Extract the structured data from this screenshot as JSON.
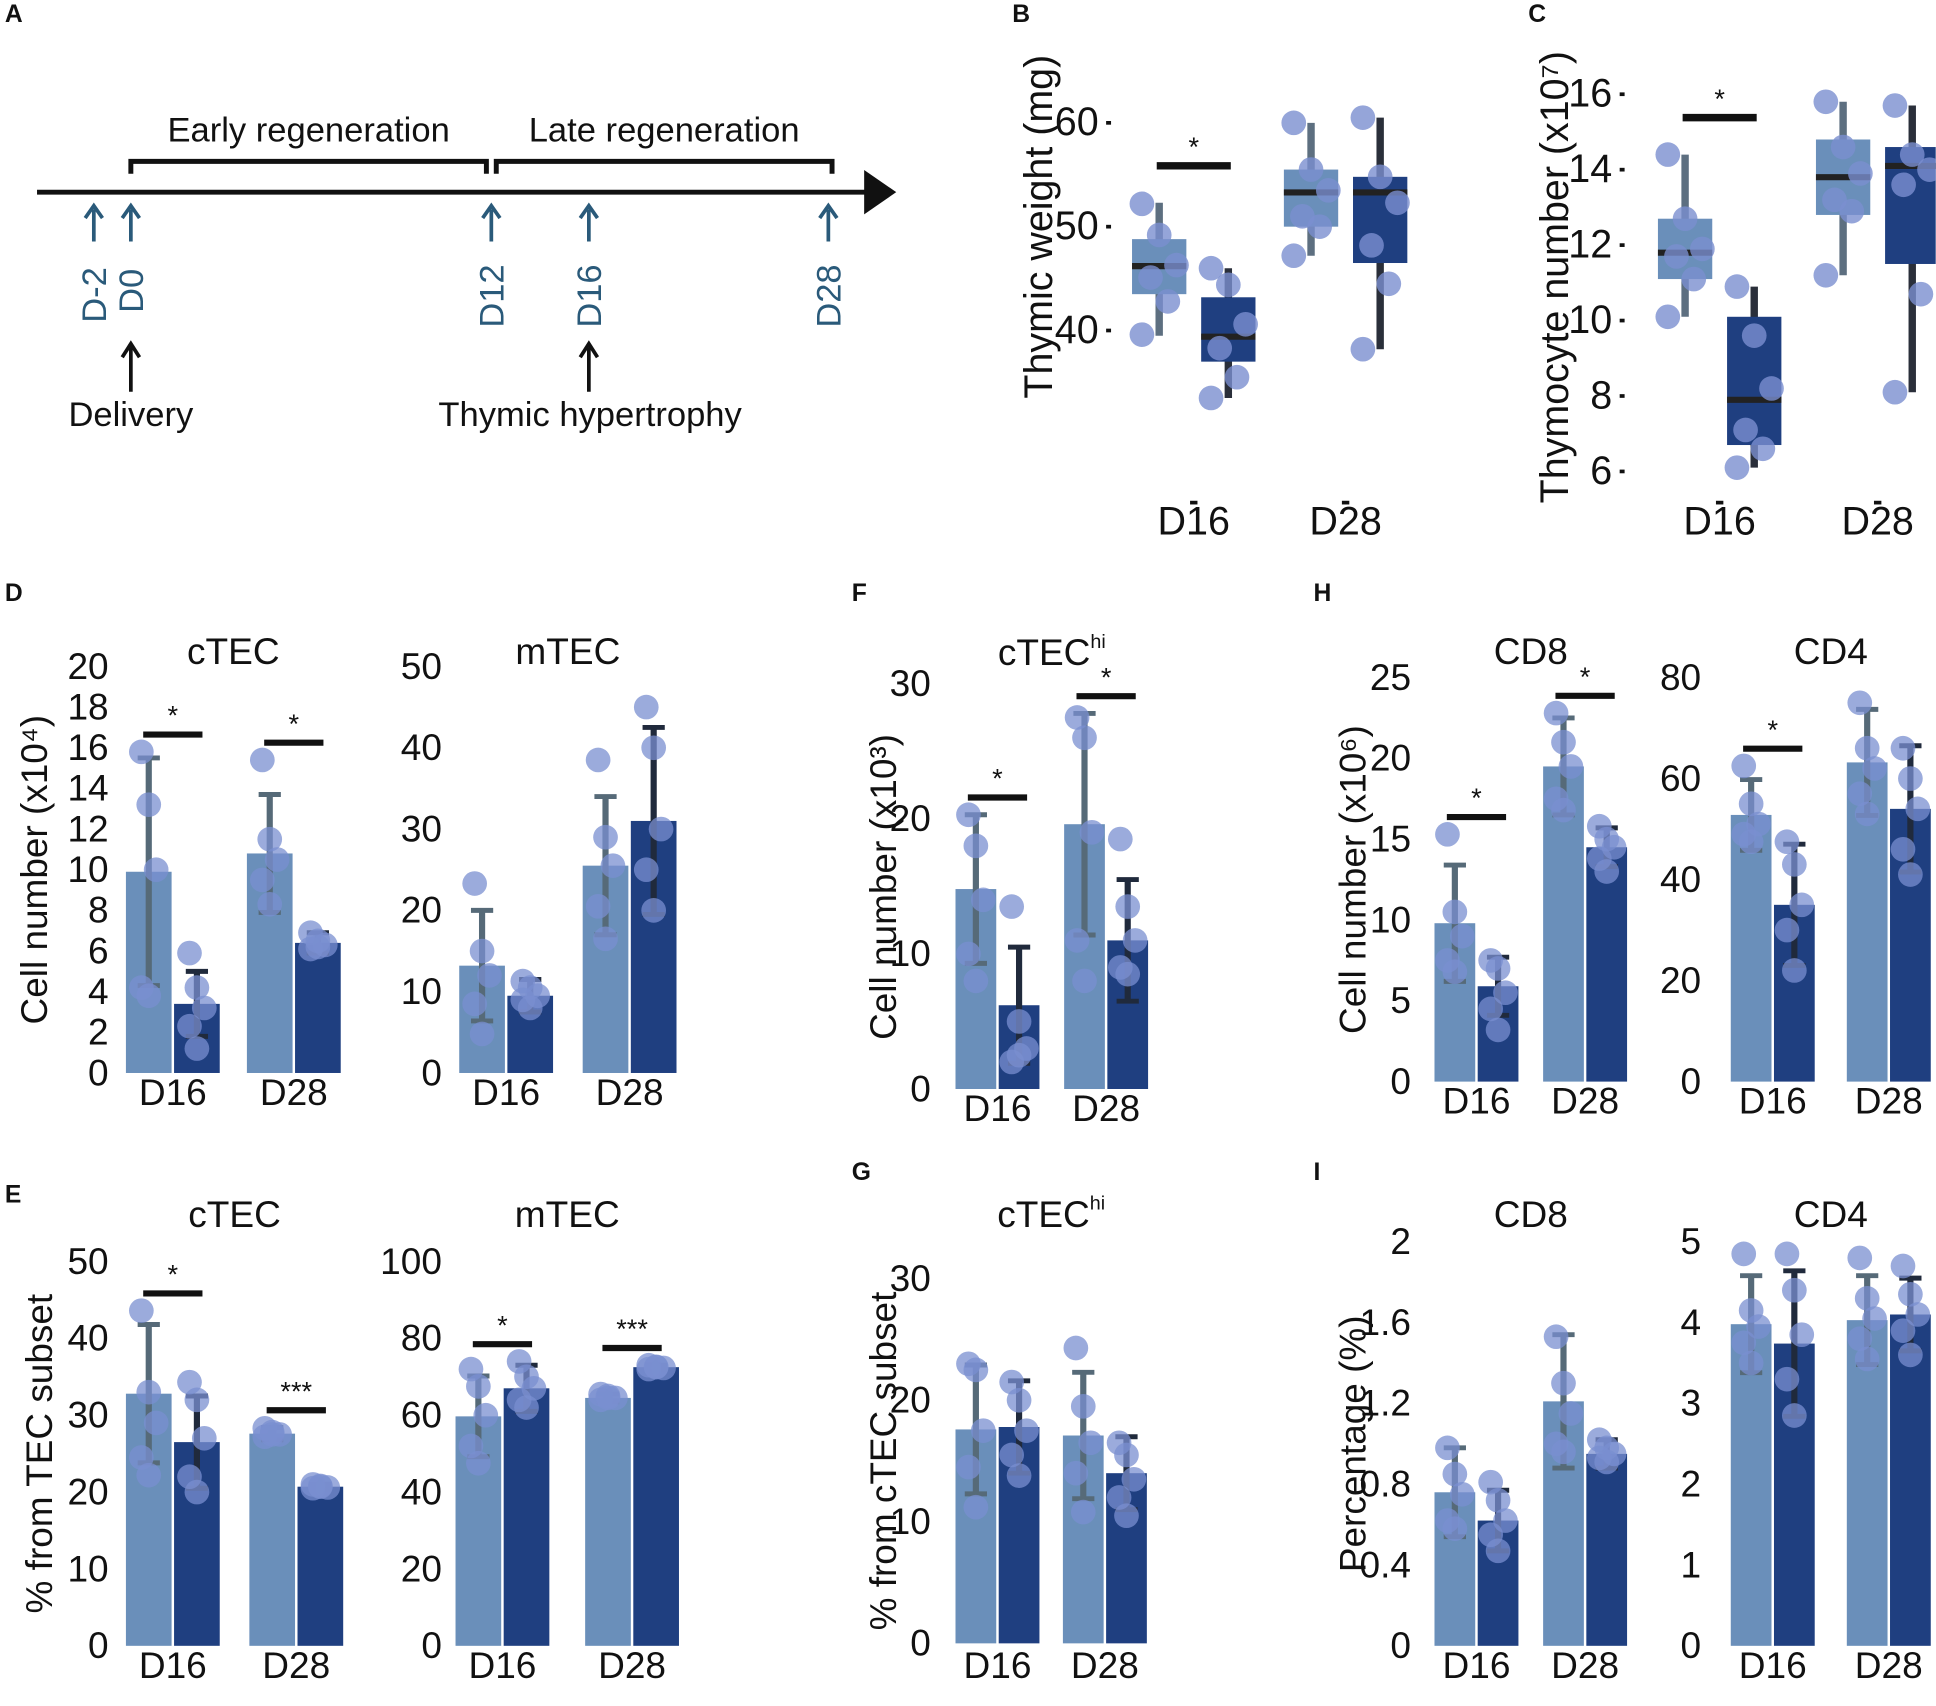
{
  "figure": {
    "panels": {
      "A": {
        "label": "A"
      },
      "B": {
        "label": "B"
      },
      "C": {
        "label": "C"
      },
      "D": {
        "label": "D"
      },
      "E": {
        "label": "E"
      },
      "F": {
        "label": "F"
      },
      "G": {
        "label": "G"
      },
      "H": {
        "label": "H"
      },
      "I": {
        "label": "I"
      }
    },
    "timeline": {
      "phases": [
        "Early regeneration",
        "Late regeneration"
      ],
      "timepoints": [
        "D-2",
        "D0",
        "D12",
        "D16",
        "D28"
      ],
      "events": [
        "Delivery",
        "Thymic hypertrophy"
      ]
    }
  },
  "colors": {
    "group1": "#6a8fba",
    "group2": "#1f3f80",
    "dots": "#7a8fd0",
    "timeline_text": "#2a5a7a",
    "axis": "#111111"
  },
  "chart_data": [
    {
      "id": "B",
      "type": "box",
      "ylabel": "Thymic weight (mg)",
      "categories": [
        "D16",
        "D28"
      ],
      "yticks": [
        40,
        50,
        60
      ],
      "ylim": [
        36,
        64
      ],
      "boxes": [
        {
          "category": "D16",
          "group": 1,
          "q1": 43.5,
          "median": 46.2,
          "q3": 48.8,
          "whisker_low": 39.5,
          "whisker_high": 52.3,
          "points": [
            52.2,
            49.2,
            46.3,
            45.1,
            42.8,
            39.6
          ]
        },
        {
          "category": "D16",
          "group": 2,
          "q1": 37.0,
          "median": 39.4,
          "q3": 43.2,
          "whisker_low": 33.5,
          "whisker_high": 46.0,
          "points": [
            46.0,
            44.4,
            40.6,
            38.3,
            35.5,
            33.5
          ]
        },
        {
          "category": "D28",
          "group": 1,
          "q1": 50.0,
          "median": 53.3,
          "q3": 55.5,
          "whisker_low": 47.2,
          "whisker_high": 60.0,
          "points": [
            60.0,
            55.5,
            53.5,
            51.0,
            50.0,
            47.2
          ]
        },
        {
          "category": "D28",
          "group": 2,
          "q1": 46.5,
          "median": 53.3,
          "q3": 54.8,
          "whisker_low": 38.2,
          "whisker_high": 60.5,
          "points": [
            60.5,
            54.8,
            52.3,
            48.2,
            44.5,
            38.2
          ]
        }
      ],
      "significance": [
        {
          "category": "D16",
          "label": "*"
        }
      ]
    },
    {
      "id": "C",
      "type": "box",
      "ylabel": "Thymocyte number (x10⁷)",
      "categories": [
        "D16",
        "D28"
      ],
      "yticks": [
        6,
        8,
        10,
        12,
        14,
        16
      ],
      "ylim": [
        5.5,
        16.8
      ],
      "boxes": [
        {
          "category": "D16",
          "group": 1,
          "q1": 11.1,
          "median": 11.8,
          "q3": 12.7,
          "whisker_low": 10.1,
          "whisker_high": 14.4,
          "points": [
            14.4,
            12.7,
            11.9,
            11.7,
            11.1,
            10.1
          ]
        },
        {
          "category": "D16",
          "group": 2,
          "q1": 6.7,
          "median": 7.9,
          "q3": 10.1,
          "whisker_low": 6.1,
          "whisker_high": 10.9,
          "points": [
            10.9,
            9.6,
            8.2,
            7.1,
            6.6,
            6.1
          ]
        },
        {
          "category": "D28",
          "group": 1,
          "q1": 12.8,
          "median": 13.8,
          "q3": 14.8,
          "whisker_low": 11.2,
          "whisker_high": 15.8,
          "points": [
            15.8,
            14.6,
            13.9,
            13.2,
            12.9,
            11.2
          ]
        },
        {
          "category": "D28",
          "group": 2,
          "q1": 11.5,
          "median": 14.1,
          "q3": 14.6,
          "whisker_low": 8.1,
          "whisker_high": 15.7,
          "points": [
            15.7,
            14.4,
            14.0,
            13.6,
            10.7,
            8.1
          ]
        }
      ],
      "significance": [
        {
          "category": "D16",
          "label": "*"
        }
      ]
    },
    {
      "id": "D-cTEC",
      "type": "bar",
      "title": "cTEC",
      "ylabel": "Cell number (x10⁴)",
      "categories": [
        "D16",
        "D28"
      ],
      "yticks": [
        0,
        2,
        4,
        6,
        8,
        10,
        12,
        14,
        16,
        18,
        20
      ],
      "ylim": [
        0,
        20
      ],
      "series": [
        {
          "name": "group1",
          "values": [
            9.9,
            10.8
          ],
          "err": [
            5.6,
            2.9
          ],
          "points": [
            [
              15.8,
              13.2,
              10.0,
              4.2,
              3.8
            ],
            [
              15.4,
              11.5,
              10.5,
              9.5,
              8.3
            ]
          ]
        },
        {
          "name": "group2",
          "values": [
            3.4,
            6.4
          ],
          "err": [
            1.6,
            0.5
          ],
          "points": [
            [
              5.9,
              4.2,
              3.2,
              2.3,
              1.2
            ],
            [
              6.9,
              6.5,
              6.3,
              6.1,
              6.2
            ]
          ]
        }
      ],
      "significance": [
        {
          "category": "D16",
          "label": "*"
        },
        {
          "category": "D28",
          "label": "*"
        }
      ]
    },
    {
      "id": "D-mTEC",
      "type": "bar",
      "title": "mTEC",
      "categories": [
        "D16",
        "D28"
      ],
      "yticks": [
        0,
        10,
        20,
        30,
        40,
        50
      ],
      "ylim": [
        0,
        50
      ],
      "series": [
        {
          "name": "group1",
          "values": [
            13.2,
            25.5
          ],
          "err": [
            6.8,
            8.5
          ],
          "points": [
            [
              23.3,
              15.0,
              12.0,
              8.5,
              4.8
            ],
            [
              38.5,
              29.0,
              25.5,
              20.5,
              16.5
            ]
          ]
        },
        {
          "name": "group2",
          "values": [
            9.5,
            31.0
          ],
          "err": [
            2.0,
            11.5
          ],
          "points": [
            [
              11.3,
              10.5,
              9.5,
              9.0,
              8.0
            ],
            [
              45.0,
              40.0,
              30.0,
              25.0,
              20.0
            ]
          ]
        }
      ]
    },
    {
      "id": "E-cTEC",
      "type": "bar",
      "title": "cTEC",
      "ylabel": "% from TEC subset",
      "categories": [
        "D16",
        "D28"
      ],
      "yticks": [
        0,
        10,
        20,
        30,
        40,
        50
      ],
      "ylim": [
        0,
        50
      ],
      "series": [
        {
          "name": "group1",
          "values": [
            32.8,
            27.6
          ],
          "err": [
            9.0,
            0.8
          ],
          "points": [
            [
              43.6,
              33.0,
              29.0,
              24.5,
              22.2
            ],
            [
              28.3,
              27.8,
              27.5,
              27.2,
              27.5
            ]
          ]
        },
        {
          "name": "group2",
          "values": [
            26.5,
            20.7
          ],
          "err": [
            6.0,
            0.3
          ],
          "points": [
            [
              34.3,
              32.0,
              27.0,
              22.0,
              20.0
            ],
            [
              21.0,
              20.8,
              20.6,
              20.5,
              20.7
            ]
          ]
        }
      ],
      "significance": [
        {
          "category": "D16",
          "label": "*"
        },
        {
          "category": "D28",
          "label": "***"
        }
      ]
    },
    {
      "id": "E-mTEC",
      "type": "bar",
      "title": "mTEC",
      "categories": [
        "D16",
        "D28"
      ],
      "yticks": [
        0,
        20,
        40,
        60,
        80,
        100
      ],
      "ylim": [
        0,
        100
      ],
      "series": [
        {
          "name": "group1",
          "values": [
            59.7,
            64.5
          ],
          "err": [
            10.5,
            1.0
          ],
          "points": [
            [
              72.0,
              67.5,
              60.0,
              52.0,
              47.5
            ],
            [
              65.5,
              65.0,
              64.5,
              64.0,
              64.5
            ]
          ]
        },
        {
          "name": "group2",
          "values": [
            67.0,
            72.5
          ],
          "err": [
            6.0,
            0.5
          ],
          "points": [
            [
              74.0,
              70.0,
              67.0,
              64.0,
              62.0
            ],
            [
              73.0,
              72.5,
              72.3,
              72.0,
              72.6
            ]
          ]
        }
      ],
      "significance": [
        {
          "category": "D16",
          "label": "*"
        },
        {
          "category": "D28",
          "label": "***"
        }
      ]
    },
    {
      "id": "F",
      "type": "bar",
      "title": "cTEC",
      "title_superscript": "hi",
      "ylabel": "Cell number (x10³)",
      "categories": [
        "D16",
        "D28"
      ],
      "yticks": [
        0,
        10,
        20,
        30
      ],
      "ylim": [
        0,
        30
      ],
      "series": [
        {
          "name": "group1",
          "values": [
            14.8,
            19.6
          ],
          "err": [
            5.5,
            8.2
          ],
          "points": [
            [
              20.3,
              18.0,
              14.0,
              10.0,
              8.0
            ],
            [
              27.5,
              26.0,
              19.0,
              11.0,
              8.0
            ]
          ]
        },
        {
          "name": "group2",
          "values": [
            6.2,
            11.0
          ],
          "err": [
            4.3,
            4.5
          ],
          "points": [
            [
              13.5,
              5.0,
              3.0,
              2.0,
              2.5
            ],
            [
              18.5,
              13.5,
              11.0,
              9.0,
              8.5
            ]
          ]
        }
      ],
      "significance": [
        {
          "category": "D16",
          "label": "*"
        },
        {
          "category": "D28",
          "label": "*"
        }
      ]
    },
    {
      "id": "G",
      "type": "bar",
      "title": "cTEC",
      "title_superscript": "hi",
      "ylabel": "% from cTEC subset",
      "categories": [
        "D16",
        "D28"
      ],
      "yticks": [
        0,
        10,
        20,
        30
      ],
      "ylim": [
        0,
        30
      ],
      "series": [
        {
          "name": "group1",
          "values": [
            17.6,
            17.1
          ],
          "err": [
            5.3,
            5.2
          ],
          "points": [
            [
              23.0,
              22.5,
              17.5,
              14.5,
              11.2
            ],
            [
              24.3,
              19.5,
              16.5,
              14.0,
              10.8
            ]
          ]
        },
        {
          "name": "group2",
          "values": [
            17.8,
            14.0
          ],
          "err": [
            3.8,
            3.0
          ],
          "points": [
            [
              21.5,
              20.0,
              17.5,
              15.5,
              13.8
            ],
            [
              16.5,
              15.5,
              13.5,
              12.0,
              10.5
            ]
          ]
        }
      ]
    },
    {
      "id": "H-CD8",
      "type": "bar",
      "title": "CD8",
      "ylabel": "Cell number (x10⁶)",
      "categories": [
        "D16",
        "D28"
      ],
      "yticks": [
        0,
        5,
        10,
        15,
        20,
        25
      ],
      "ylim": [
        0,
        25
      ],
      "series": [
        {
          "name": "group1",
          "values": [
            9.8,
            19.5
          ],
          "err": [
            3.6,
            3.0
          ],
          "points": [
            [
              15.3,
              10.5,
              9.0,
              7.5,
              6.8
            ],
            [
              22.8,
              21.0,
              19.5,
              17.5,
              16.8
            ]
          ]
        },
        {
          "name": "group2",
          "values": [
            5.9,
            14.5
          ],
          "err": [
            1.8,
            1.2
          ],
          "points": [
            [
              7.5,
              7.0,
              5.5,
              4.5,
              3.2
            ],
            [
              15.8,
              15.0,
              14.5,
              13.8,
              13.0
            ]
          ]
        }
      ],
      "significance": [
        {
          "category": "D16",
          "label": "*"
        },
        {
          "category": "D28",
          "label": "*"
        }
      ]
    },
    {
      "id": "H-CD4",
      "type": "bar",
      "title": "CD4",
      "categories": [
        "D16",
        "D28"
      ],
      "yticks": [
        0,
        20,
        40,
        60,
        80
      ],
      "ylim": [
        0,
        80
      ],
      "series": [
        {
          "name": "group1",
          "values": [
            52.8,
            63.2
          ],
          "err": [
            7.0,
            10.5
          ],
          "points": [
            [
              62.5,
              55.0,
              51.0,
              49.0,
              47.5
            ],
            [
              75.0,
              66.0,
              62.0,
              57.0,
              53.0
            ]
          ]
        },
        {
          "name": "group2",
          "values": [
            35.0,
            54.0
          ],
          "err": [
            12.0,
            12.5
          ],
          "points": [
            [
              47.5,
              43.0,
              35.0,
              30.0,
              22.0
            ],
            [
              66.0,
              60.0,
              54.0,
              46.0,
              41.0
            ]
          ]
        }
      ],
      "significance": [
        {
          "category": "D16",
          "label": "*"
        }
      ]
    },
    {
      "id": "I-CD8",
      "type": "bar",
      "title": "CD8",
      "ylabel": "Percentage (%)",
      "categories": [
        "D16",
        "D28"
      ],
      "yticks": [
        0,
        0.4,
        0.8,
        1.2,
        1.6,
        2
      ],
      "ytick_labels": [
        "0",
        "0.4",
        "0.8",
        "1.2",
        "1.6",
        "2"
      ],
      "ylim": [
        0,
        2
      ],
      "series": [
        {
          "name": "group1",
          "values": [
            0.76,
            1.21
          ],
          "err": [
            0.22,
            0.33
          ],
          "points": [
            [
              0.98,
              0.85,
              0.75,
              0.62,
              0.58
            ],
            [
              1.53,
              1.3,
              1.15,
              1.0,
              0.96
            ]
          ]
        },
        {
          "name": "group2",
          "values": [
            0.62,
            0.95
          ],
          "err": [
            0.15,
            0.07
          ],
          "points": [
            [
              0.81,
              0.72,
              0.62,
              0.55,
              0.47
            ],
            [
              1.02,
              0.98,
              0.95,
              0.93,
              0.91
            ]
          ]
        }
      ]
    },
    {
      "id": "I-CD4",
      "type": "bar",
      "title": "CD4",
      "categories": [
        "D16",
        "D28"
      ],
      "yticks": [
        0,
        1,
        2,
        3,
        4,
        5
      ],
      "ylim": [
        0,
        5
      ],
      "series": [
        {
          "name": "group1",
          "values": [
            3.98,
            4.03
          ],
          "err": [
            0.6,
            0.55
          ],
          "points": [
            [
              4.85,
              4.15,
              3.95,
              3.75,
              3.5
            ],
            [
              4.8,
              4.3,
              4.05,
              3.8,
              3.55
            ]
          ]
        },
        {
          "name": "group2",
          "values": [
            3.74,
            4.1
          ],
          "err": [
            0.9,
            0.45
          ],
          "points": [
            [
              4.85,
              4.4,
              3.85,
              3.3,
              2.85
            ],
            [
              4.7,
              4.35,
              4.1,
              3.9,
              3.6
            ]
          ]
        }
      ]
    }
  ]
}
